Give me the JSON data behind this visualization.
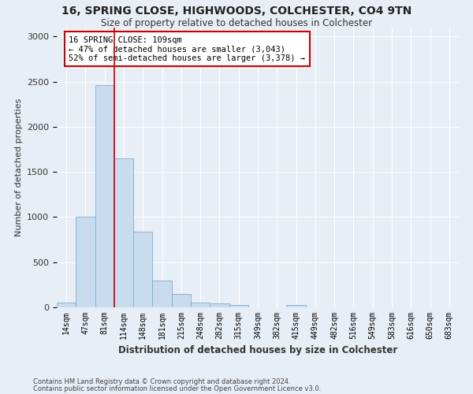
{
  "title": "16, SPRING CLOSE, HIGHWOODS, COLCHESTER, CO4 9TN",
  "subtitle": "Size of property relative to detached houses in Colchester",
  "xlabel": "Distribution of detached houses by size in Colchester",
  "ylabel": "Number of detached properties",
  "bar_color": "#c9dced",
  "bar_edge_color": "#7aafd4",
  "vline_color": "#cc0000",
  "annotation_text": "16 SPRING CLOSE: 109sqm\n← 47% of detached houses are smaller (3,043)\n52% of semi-detached houses are larger (3,378) →",
  "footer_line1": "Contains HM Land Registry data © Crown copyright and database right 2024.",
  "footer_line2": "Contains public sector information licensed under the Open Government Licence v3.0.",
  "categories": [
    "14sqm",
    "47sqm",
    "81sqm",
    "114sqm",
    "148sqm",
    "181sqm",
    "215sqm",
    "248sqm",
    "282sqm",
    "315sqm",
    "349sqm",
    "382sqm",
    "415sqm",
    "449sqm",
    "482sqm",
    "516sqm",
    "549sqm",
    "583sqm",
    "616sqm",
    "650sqm",
    "683sqm"
  ],
  "values": [
    55,
    1000,
    2460,
    1650,
    840,
    300,
    150,
    55,
    40,
    30,
    0,
    0,
    30,
    0,
    0,
    0,
    0,
    0,
    0,
    0,
    0
  ],
  "ylim": [
    0,
    3100
  ],
  "yticks": [
    0,
    500,
    1000,
    1500,
    2000,
    2500,
    3000
  ],
  "background_color": "#e8eef5",
  "grid_color": "#ffffff",
  "vline_bin_index": 2.5
}
